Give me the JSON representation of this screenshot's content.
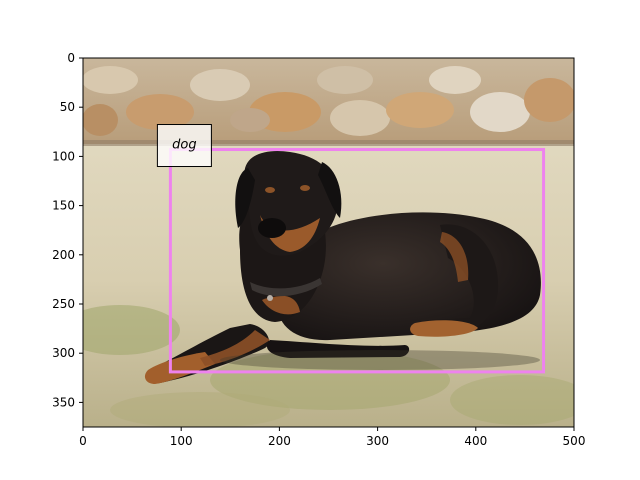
{
  "image": {
    "width": 500,
    "height": 375,
    "subject": "dog"
  },
  "axes": {
    "xlim": [
      0,
      500
    ],
    "ylim": [
      375,
      0
    ],
    "x_ticks": [
      0,
      100,
      200,
      300,
      400,
      500
    ],
    "y_ticks": [
      0,
      50,
      100,
      150,
      200,
      250,
      300,
      350
    ]
  },
  "detections": [
    {
      "label": "dog",
      "box": {
        "x0": 89,
        "y0": 93,
        "x1": 469,
        "y1": 319
      },
      "color": "#ee82ee"
    }
  ],
  "label_box_color": "#000000"
}
